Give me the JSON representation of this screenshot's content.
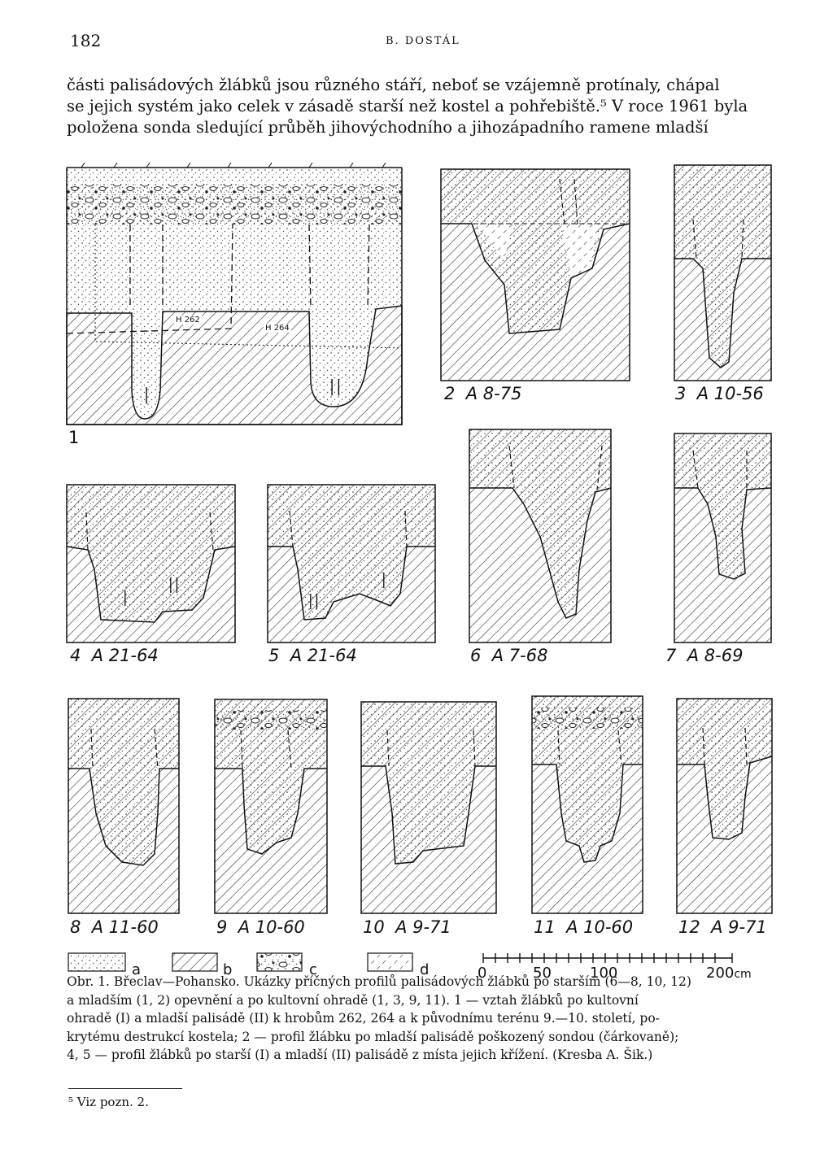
{
  "header": {
    "page_number": "182",
    "running_head": "B. DOSTÁL"
  },
  "body": {
    "lines": [
      "části palisádových žlábků jsou různého stáří, neboť se vzájemně protínaly, chápal",
      "se jejich systém jako celek v zásadě starší než kostel a pohřebiště.⁵ V roce 1961 byla",
      "položena sonda sledující průběh jihovýchodního a jihozápadního ramene mladší"
    ]
  },
  "figure": {
    "panels": [
      {
        "num": "1",
        "code": ""
      },
      {
        "num": "2",
        "code": "A 8-75"
      },
      {
        "num": "3",
        "code": "A 10-56"
      },
      {
        "num": "4",
        "code": "A 21-64"
      },
      {
        "num": "5",
        "code": "A 21-64"
      },
      {
        "num": "6",
        "code": "A 7-68"
      },
      {
        "num": "7",
        "code": "A 8-69"
      },
      {
        "num": "8",
        "code": "A 11-60"
      },
      {
        "num": "9",
        "code": "A 10-60"
      },
      {
        "num": "10",
        "code": "A 9-71"
      },
      {
        "num": "11",
        "code": "A 10-60"
      },
      {
        "num": "12",
        "code": "A 9-71"
      }
    ],
    "grave_labels": [
      "H 262",
      "H 264"
    ],
    "roman_labels": {
      "p1": [
        "I",
        "II"
      ],
      "p4": [
        "I",
        "II"
      ],
      "p5": [
        "II",
        "I"
      ]
    },
    "legend": [
      "a",
      "b",
      "c",
      "d"
    ],
    "scale": {
      "ticks": [
        "0",
        "50",
        "100",
        "200"
      ],
      "unit": "cm"
    }
  },
  "caption": {
    "lines": [
      "Obr. 1. Břeclav—Pohansko. Ukázky příčných profilů palisádových žlábků po starším (6—8, 10, 12)",
      "a mladším (1, 2) opevnění a po kultovní ohradě (1, 3, 9, 11). 1 — vztah žlábků po kultovní",
      "ohradě (I) a mladší palisádě (II) k hrobům 262, 264 a k původnímu terénu 9.—10. století, po-",
      "krytému destrukcí kostela; 2 — profil žlábku po mladší palisádě poškozený sondou (čárkovaně);",
      "4, 5 — profil žlábků po starší (I) a mladší (II) palisádě z místa jejich křížení. (Kresba A. Šik.)"
    ]
  },
  "footnote": {
    "text": "⁵ Viz pozn. 2."
  }
}
